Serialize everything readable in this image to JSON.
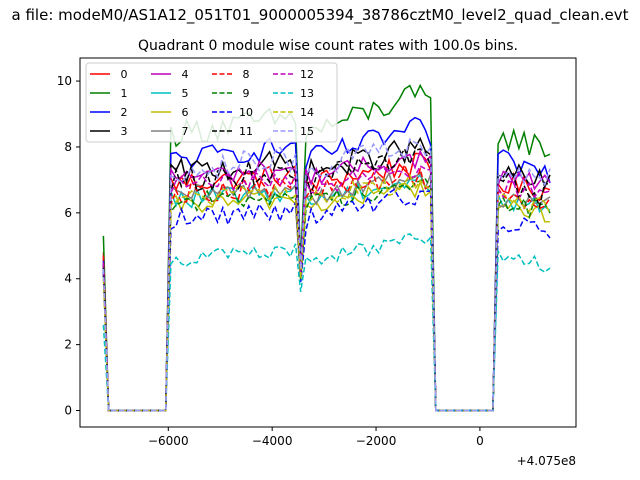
{
  "figure": {
    "suptitle": "a file: modeM0/AS1A12_051T01_9000005394_38786cztM0_level2_quad_clean.evt",
    "title": "Quadrant 0 module wise count rates with 100.0s bins.",
    "x_offset_label": "+4.075e8"
  },
  "chart_data": {
    "type": "line",
    "title": "Quadrant 0 module wise count rates with 100.0s bins.",
    "xlabel": "",
    "ylabel": "",
    "xlim": [
      -7700,
      1850
    ],
    "ylim": [
      -0.5,
      10.7
    ],
    "x_offset": 407500000,
    "x_ticks": [
      -6000,
      -4000,
      -2000,
      0
    ],
    "x_tick_labels": [
      "−6000",
      "−4000",
      "−2000",
      "0"
    ],
    "y_ticks": [
      0,
      2,
      4,
      6,
      8,
      10
    ],
    "y_tick_labels": [
      "0",
      "2",
      "4",
      "6",
      "8",
      "10"
    ],
    "grid": false,
    "legend_position": "upper-left",
    "legend_columns": 4,
    "segments": [
      {
        "start": -7250,
        "end": -7150,
        "kind": "edge"
      },
      {
        "start": -7150,
        "end": -5950,
        "kind": "zero"
      },
      {
        "start": -5950,
        "end": -3450,
        "kind": "active"
      },
      {
        "start": -3450,
        "end": -3350,
        "kind": "dip"
      },
      {
        "start": -3350,
        "end": -850,
        "kind": "active"
      },
      {
        "start": -850,
        "end": 350,
        "kind": "zero"
      },
      {
        "start": 350,
        "end": 1350,
        "kind": "active"
      }
    ],
    "series": [
      {
        "name": "0",
        "color": "#ff0000",
        "dash": "solid",
        "level": 6.9,
        "slope": 0.0003,
        "amp": 0.35,
        "start_value": 4.8,
        "dip_value": 4.3
      },
      {
        "name": "1",
        "color": "#008000",
        "dash": "solid",
        "level": 8.4,
        "slope": 0.0006,
        "amp": 0.4,
        "start_value": 5.3,
        "dip_value": 4.5
      },
      {
        "name": "2",
        "color": "#0000ff",
        "dash": "solid",
        "level": 7.6,
        "slope": 0.0005,
        "amp": 0.35,
        "start_value": 4.6,
        "dip_value": 4.3
      },
      {
        "name": "3",
        "color": "#000000",
        "dash": "solid",
        "level": 7.2,
        "slope": 0.0004,
        "amp": 0.4,
        "start_value": 4.5,
        "dip_value": 4.2
      },
      {
        "name": "4",
        "color": "#bf00bf",
        "dash": "solid",
        "level": 7.1,
        "slope": 0.0003,
        "amp": 0.3,
        "start_value": 4.4,
        "dip_value": 4.2
      },
      {
        "name": "5",
        "color": "#00bfbf",
        "dash": "solid",
        "level": 6.4,
        "slope": 0.0003,
        "amp": 0.3,
        "start_value": 4.2,
        "dip_value": 4.0
      },
      {
        "name": "6",
        "color": "#bfbf00",
        "dash": "solid",
        "level": 6.2,
        "slope": 0.0003,
        "amp": 0.3,
        "start_value": 4.1,
        "dip_value": 3.9
      },
      {
        "name": "7",
        "color": "#808080",
        "dash": "solid",
        "level": 6.5,
        "slope": 0.0003,
        "amp": 0.3,
        "start_value": 4.3,
        "dip_value": 4.1
      },
      {
        "name": "8",
        "color": "#ff0000",
        "dash": "dashed",
        "level": 6.6,
        "slope": 0.0003,
        "amp": 0.35,
        "start_value": 4.7,
        "dip_value": 4.2
      },
      {
        "name": "9",
        "color": "#008000",
        "dash": "dashed",
        "level": 6.3,
        "slope": 0.0003,
        "amp": 0.3,
        "start_value": 4.3,
        "dip_value": 4.0
      },
      {
        "name": "10",
        "color": "#0000ff",
        "dash": "dashed",
        "level": 5.8,
        "slope": 0.0004,
        "amp": 0.35,
        "start_value": 4.2,
        "dip_value": 3.9
      },
      {
        "name": "11",
        "color": "#000000",
        "dash": "dashed",
        "level": 6.9,
        "slope": 0.0005,
        "amp": 0.4,
        "start_value": 4.4,
        "dip_value": 4.1
      },
      {
        "name": "12",
        "color": "#bf00bf",
        "dash": "dashed",
        "level": 6.8,
        "slope": 0.0003,
        "amp": 0.3,
        "start_value": 4.5,
        "dip_value": 4.2
      },
      {
        "name": "13",
        "color": "#00bfbf",
        "dash": "dashed",
        "level": 4.6,
        "slope": 0.0003,
        "amp": 0.25,
        "start_value": 2.6,
        "dip_value": 3.6
      },
      {
        "name": "14",
        "color": "#bfbf00",
        "dash": "dashed",
        "level": 6.4,
        "slope": 0.0003,
        "amp": 0.3,
        "start_value": 4.0,
        "dip_value": 4.0
      },
      {
        "name": "15",
        "color": "#9999ff",
        "dash": "dashed",
        "level": 7.3,
        "slope": 0.0004,
        "amp": 0.4,
        "start_value": 4.3,
        "dip_value": 4.3
      }
    ]
  }
}
